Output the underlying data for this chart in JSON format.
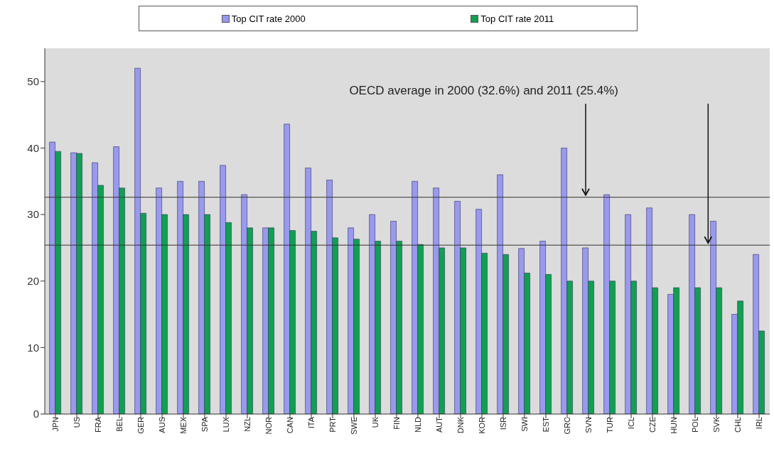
{
  "chart_data": {
    "type": "bar",
    "categories": [
      "JPN",
      "US",
      "FRA",
      "BEL",
      "GER",
      "AUS",
      "MEX",
      "SPA",
      "LUX",
      "NZL",
      "NOR",
      "CAN",
      "ITA",
      "PRT",
      "SWE",
      "UK",
      "FIN",
      "NLD",
      "AUT",
      "DNK",
      "KOR",
      "ISR",
      "SWI",
      "EST",
      "GRC",
      "SVN",
      "TUR",
      "ICL",
      "CZE",
      "HUN",
      "POL",
      "SVK",
      "CHL",
      "IRL"
    ],
    "series": [
      {
        "name": "Top CIT rate 2000",
        "color": "#9999ee",
        "values": [
          40.9,
          39.3,
          37.8,
          40.2,
          52,
          34,
          35,
          35,
          37.4,
          33,
          28,
          43.6,
          37,
          35.2,
          28,
          30,
          29,
          35,
          34,
          32,
          30.8,
          36,
          24.9,
          26,
          40,
          25,
          33,
          30,
          31,
          18,
          30,
          29,
          15,
          24
        ]
      },
      {
        "name": "Top CIT rate 2011",
        "color": "#10a050",
        "values": [
          39.5,
          39.2,
          34.4,
          34,
          30.2,
          30,
          30,
          30,
          28.8,
          28,
          28,
          27.6,
          27.5,
          26.5,
          26.3,
          26,
          26,
          25.5,
          25,
          25,
          24.2,
          24,
          21.2,
          21,
          20,
          20,
          20,
          20,
          19,
          19,
          19,
          19,
          17,
          12.5
        ]
      }
    ],
    "ylim": [
      0,
      55
    ],
    "yticks": [
      0,
      10,
      20,
      30,
      40,
      50
    ],
    "grid": false,
    "legend": "top",
    "ref_lines": [
      {
        "axis": "y",
        "value": 32.6,
        "color": "#333333"
      },
      {
        "axis": "y",
        "value": 25.4,
        "color": "#333333"
      }
    ],
    "annotations": [
      {
        "text": "OECD average in 2000 (32.6%) and 2011 (25.4%)",
        "x": "SVN",
        "y": 32.6
      }
    ]
  }
}
